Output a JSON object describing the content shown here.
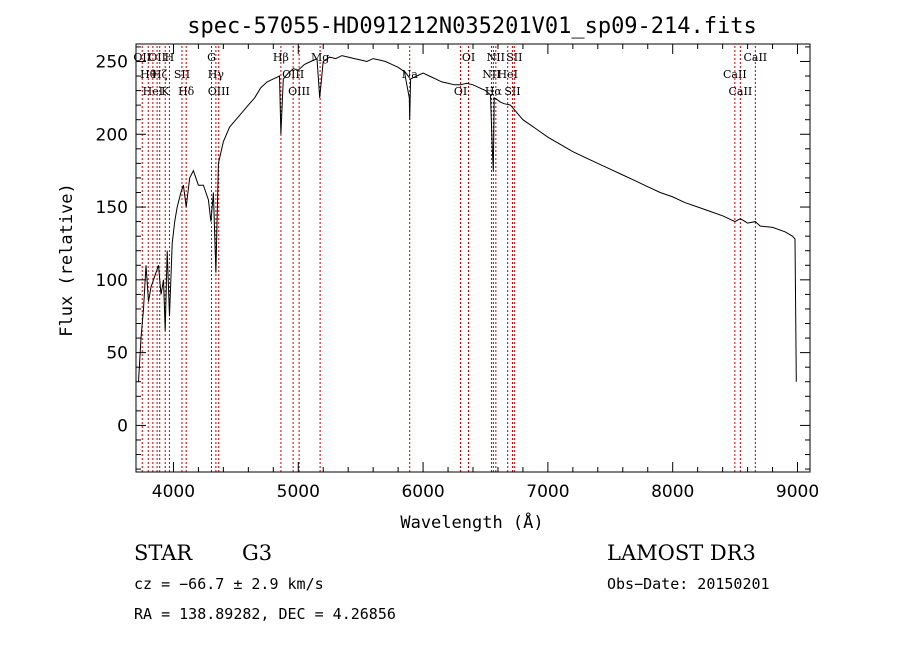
{
  "chart_data": {
    "type": "line",
    "title": "spec-57055-HD091212N035201V01_sp09-214.fits",
    "xlabel": "Wavelength (Å)",
    "ylabel": "Flux (relative)",
    "xlim": [
      3700,
      9100
    ],
    "ylim": [
      -32,
      262
    ],
    "xticks": [
      4000,
      5000,
      6000,
      7000,
      8000,
      9000
    ],
    "yticks": [
      0,
      50,
      100,
      150,
      200,
      250
    ],
    "grid": false,
    "series": [
      {
        "name": "spectrum",
        "x": [
          3720,
          3740,
          3760,
          3780,
          3800,
          3820,
          3840,
          3860,
          3880,
          3900,
          3920,
          3934,
          3950,
          3968,
          3990,
          4010,
          4030,
          4060,
          4080,
          4102,
          4130,
          4160,
          4200,
          4240,
          4280,
          4300,
          4320,
          4340,
          4360,
          4400,
          4450,
          4500,
          4550,
          4600,
          4650,
          4700,
          4750,
          4800,
          4850,
          4861,
          4880,
          4920,
          4960,
          5000,
          5050,
          5100,
          5150,
          5172,
          5200,
          5250,
          5300,
          5350,
          5400,
          5450,
          5500,
          5550,
          5600,
          5650,
          5700,
          5750,
          5800,
          5850,
          5890,
          5893,
          5900,
          5950,
          6000,
          6050,
          6100,
          6150,
          6200,
          6250,
          6300,
          6350,
          6400,
          6450,
          6500,
          6540,
          6555,
          6563,
          6570,
          6590,
          6620,
          6650,
          6700,
          6750,
          6800,
          6900,
          7000,
          7100,
          7200,
          7300,
          7400,
          7500,
          7600,
          7700,
          7800,
          7900,
          8000,
          8100,
          8200,
          8300,
          8400,
          8498,
          8542,
          8600,
          8662,
          8700,
          8800,
          8900,
          8960,
          8980,
          8990
        ],
        "values": [
          30,
          60,
          80,
          110,
          85,
          95,
          100,
          105,
          110,
          90,
          100,
          65,
          120,
          75,
          125,
          140,
          150,
          160,
          165,
          150,
          170,
          175,
          165,
          165,
          155,
          140,
          160,
          105,
          180,
          195,
          205,
          210,
          215,
          220,
          225,
          232,
          236,
          238,
          240,
          200,
          238,
          242,
          245,
          244,
          248,
          250,
          252,
          225,
          250,
          253,
          252,
          254,
          253,
          252,
          251,
          250,
          252,
          251,
          250,
          248,
          246,
          243,
          225,
          210,
          238,
          240,
          242,
          240,
          238,
          236,
          235,
          234,
          234,
          235,
          234,
          232,
          230,
          227,
          190,
          175,
          225,
          224,
          222,
          221,
          220,
          215,
          210,
          204,
          198,
          193,
          188,
          184,
          180,
          176,
          172,
          168,
          164,
          160,
          157,
          153,
          150,
          147,
          144,
          140,
          142,
          139,
          140,
          137,
          136,
          133,
          130,
          128,
          30
        ]
      }
    ],
    "line_markers": [
      {
        "wavelength": 3750,
        "labels": [
          "OII"
        ]
      },
      {
        "wavelength": 3798,
        "labels": [
          "Hθ"
        ]
      },
      {
        "wavelength": 3835,
        "labels": [
          "HeI"
        ]
      },
      {
        "wavelength": 3869,
        "labels": [
          "OII"
        ]
      },
      {
        "wavelength": 3890,
        "labels": [
          "Hζ"
        ]
      },
      {
        "wavelength": 3934,
        "labels": [
          "K"
        ]
      },
      {
        "wavelength": 3968,
        "labels": [
          "H"
        ]
      },
      {
        "wavelength": 4068,
        "labels": [
          "SII"
        ]
      },
      {
        "wavelength": 4102,
        "labels": [
          "Hδ"
        ]
      },
      {
        "wavelength": 4305,
        "labels": [
          "G"
        ]
      },
      {
        "wavelength": 4340,
        "labels": [
          "Hγ"
        ]
      },
      {
        "wavelength": 4363,
        "labels": [
          "OIII"
        ]
      },
      {
        "wavelength": 4861,
        "labels": [
          "Hβ"
        ]
      },
      {
        "wavelength": 4959,
        "labels": [
          "OIII"
        ]
      },
      {
        "wavelength": 5007,
        "labels": [
          "OIII"
        ]
      },
      {
        "wavelength": 5175,
        "labels": [
          "Mg"
        ]
      },
      {
        "wavelength": 5893,
        "labels": [
          "Na"
        ]
      },
      {
        "wavelength": 6300,
        "labels": [
          "OI"
        ]
      },
      {
        "wavelength": 6364,
        "labels": [
          "OI"
        ]
      },
      {
        "wavelength": 6548,
        "labels": [
          "NII"
        ]
      },
      {
        "wavelength": 6563,
        "labels": [
          "Hα"
        ]
      },
      {
        "wavelength": 6583,
        "labels": [
          "NII"
        ]
      },
      {
        "wavelength": 6678,
        "labels": [
          "HeI"
        ]
      },
      {
        "wavelength": 6716,
        "labels": [
          "SII"
        ]
      },
      {
        "wavelength": 6731,
        "labels": [
          "SII"
        ]
      },
      {
        "wavelength": 8498,
        "labels": [
          "CaII"
        ]
      },
      {
        "wavelength": 8542,
        "labels": [
          "CaII"
        ]
      },
      {
        "wavelength": 8662,
        "labels": [
          "CaII"
        ]
      }
    ]
  },
  "info": {
    "object_class": "STAR",
    "subclass": "G3",
    "survey": "LAMOST DR3",
    "redshift": "cz = −66.7 ± 2.9 km/s",
    "obs_date": "Obs−Date: 20150201",
    "coords": "RA = 138.89282, DEC =    4.26856"
  },
  "colors": {
    "marker_line": "#c00000",
    "spectrum": "#000000"
  }
}
